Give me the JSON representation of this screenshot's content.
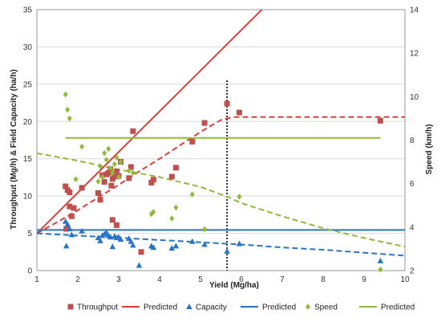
{
  "chart_data": {
    "type": "scatter",
    "xlabel": "Yield (Mg/ha)",
    "ylabel_left": "Throughput (Mg/h) & Field Capacity (ha/h)",
    "ylabel_right": "Speed (km/h)",
    "xlim": [
      1,
      10
    ],
    "ylim_left": [
      0,
      35
    ],
    "ylim_right": [
      2,
      14
    ],
    "xticks": [
      "1",
      "2",
      "3",
      "4",
      "5",
      "6",
      "7",
      "8",
      "9",
      "10"
    ],
    "yticks_left": [
      "0",
      "5",
      "10",
      "15",
      "20",
      "25",
      "30",
      "35"
    ],
    "yticks_right": [
      "2",
      "4",
      "6",
      "8",
      "10",
      "12",
      "14"
    ],
    "grid": "horizontal",
    "legend_position": "bottom",
    "vertical_marker_x": 5.65,
    "colors": {
      "red": "#d9403a",
      "blue": "#2a74c6",
      "green": "#8fba3a",
      "grid": "#d9d9d9",
      "marker_line": "#000000"
    },
    "legend": [
      {
        "label": "Throughput",
        "kind": "marker",
        "shape": "square",
        "color": "#c0504d"
      },
      {
        "label": "Predicted",
        "kind": "line",
        "color": "#d9403a"
      },
      {
        "label": "Capacity",
        "kind": "marker",
        "shape": "triangle",
        "color": "#2a74c6"
      },
      {
        "label": "Predicted",
        "kind": "line",
        "color": "#2a74c6"
      },
      {
        "label": "Speed",
        "kind": "marker",
        "shape": "diamond",
        "color": "#8fba3a"
      },
      {
        "label": "Predicted",
        "kind": "line",
        "color": "#8fba3a"
      }
    ],
    "series": [
      {
        "name": "Throughput",
        "axis": "left",
        "shape": "square",
        "color": "#c0504d",
        "points": [
          [
            1.7,
            11.3
          ],
          [
            1.72,
            5.6
          ],
          [
            1.75,
            10.8
          ],
          [
            1.8,
            10.5
          ],
          [
            1.8,
            8.6
          ],
          [
            1.85,
            7.3
          ],
          [
            1.9,
            8.4
          ],
          [
            2.1,
            11.1
          ],
          [
            2.5,
            10.4
          ],
          [
            2.55,
            9.5
          ],
          [
            2.6,
            12.8
          ],
          [
            2.65,
            11.9
          ],
          [
            2.7,
            12.9
          ],
          [
            2.75,
            13.1
          ],
          [
            2.8,
            13.6
          ],
          [
            2.82,
            11.4
          ],
          [
            2.85,
            12.3
          ],
          [
            2.9,
            12.6
          ],
          [
            2.95,
            13.3
          ],
          [
            2.85,
            6.8
          ],
          [
            2.95,
            6.1
          ],
          [
            3.0,
            12.7
          ],
          [
            3.05,
            14.6
          ],
          [
            3.25,
            12.4
          ],
          [
            3.3,
            13.9
          ],
          [
            3.35,
            18.7
          ],
          [
            3.55,
            2.5
          ],
          [
            3.8,
            11.8
          ],
          [
            3.85,
            12.2
          ],
          [
            4.3,
            12.6
          ],
          [
            4.4,
            13.8
          ],
          [
            4.8,
            17.3
          ],
          [
            5.1,
            19.8
          ],
          [
            5.65,
            22.4
          ],
          [
            5.95,
            21.2
          ],
          [
            9.4,
            20.1
          ]
        ]
      },
      {
        "name": "Predicted",
        "axis": "left",
        "style": "solid",
        "color": "#d9403a",
        "points": [
          [
            1,
            5
          ],
          [
            6.5,
            35
          ]
        ]
      },
      {
        "name": "Predicted",
        "axis": "left",
        "style": "dashed",
        "color": "#d9403a",
        "points": [
          [
            1,
            5
          ],
          [
            1.5,
            6.5
          ],
          [
            2,
            8.1
          ],
          [
            2.5,
            9.8
          ],
          [
            3,
            11.5
          ],
          [
            3.5,
            13.3
          ],
          [
            4,
            15
          ],
          [
            4.5,
            16.8
          ],
          [
            5,
            18.6
          ],
          [
            5.5,
            20.2
          ],
          [
            5.8,
            20.6
          ],
          [
            6,
            20.6
          ],
          [
            7,
            20.6
          ],
          [
            8,
            20.6
          ],
          [
            9,
            20.6
          ],
          [
            10,
            20.6
          ]
        ]
      },
      {
        "name": "Capacity",
        "axis": "left",
        "shape": "triangle",
        "color": "#2a74c6",
        "points": [
          [
            1.7,
            6.6
          ],
          [
            1.72,
            3.3
          ],
          [
            1.75,
            6.2
          ],
          [
            1.8,
            5.6
          ],
          [
            1.85,
            4.8
          ],
          [
            2.1,
            5.3
          ],
          [
            2.5,
            4.4
          ],
          [
            2.55,
            4.0
          ],
          [
            2.6,
            4.7
          ],
          [
            2.65,
            4.9
          ],
          [
            2.7,
            5.1
          ],
          [
            2.75,
            4.7
          ],
          [
            2.8,
            4.5
          ],
          [
            2.85,
            3.2
          ],
          [
            2.9,
            4.6
          ],
          [
            2.95,
            4.4
          ],
          [
            3.0,
            4.5
          ],
          [
            3.05,
            4.2
          ],
          [
            3.25,
            4.3
          ],
          [
            3.3,
            3.9
          ],
          [
            3.35,
            3.4
          ],
          [
            3.5,
            0.7
          ],
          [
            3.8,
            3.3
          ],
          [
            3.85,
            3.1
          ],
          [
            4.3,
            3.0
          ],
          [
            4.4,
            3.3
          ],
          [
            4.8,
            3.9
          ],
          [
            5.1,
            3.5
          ],
          [
            5.65,
            2.6
          ],
          [
            5.95,
            3.6
          ],
          [
            9.4,
            1.3
          ]
        ]
      },
      {
        "name": "Predicted",
        "axis": "left",
        "style": "solid",
        "color": "#2a74c6",
        "points": [
          [
            1,
            5.45
          ],
          [
            10,
            5.45
          ]
        ]
      },
      {
        "name": "Predicted",
        "axis": "left",
        "style": "dashed",
        "color": "#2a74c6",
        "points": [
          [
            1,
            5.0
          ],
          [
            2,
            4.7
          ],
          [
            3,
            4.4
          ],
          [
            4,
            4.1
          ],
          [
            5,
            3.8
          ],
          [
            6,
            3.5
          ],
          [
            7,
            3.1
          ],
          [
            8,
            2.8
          ],
          [
            9,
            2.4
          ],
          [
            10,
            2.0
          ]
        ]
      },
      {
        "name": "Speed",
        "axis": "right",
        "shape": "diamond",
        "color": "#8fba3a",
        "points": [
          [
            1.7,
            10.1
          ],
          [
            1.75,
            9.4
          ],
          [
            1.8,
            9.0
          ],
          [
            1.95,
            6.2
          ],
          [
            2.1,
            7.7
          ],
          [
            2.5,
            6.1
          ],
          [
            2.55,
            6.8
          ],
          [
            2.6,
            6.3
          ],
          [
            2.65,
            7.4
          ],
          [
            2.7,
            7.1
          ],
          [
            2.75,
            7.6
          ],
          [
            2.8,
            6.7
          ],
          [
            2.85,
            6.5
          ],
          [
            2.9,
            6.9
          ],
          [
            2.95,
            7.2
          ],
          [
            3.0,
            6.3
          ],
          [
            3.05,
            7.0
          ],
          [
            3.25,
            6.6
          ],
          [
            3.35,
            6.5
          ],
          [
            3.8,
            4.6
          ],
          [
            3.85,
            4.7
          ],
          [
            4.3,
            4.4
          ],
          [
            4.4,
            4.9
          ],
          [
            4.8,
            5.5
          ],
          [
            5.1,
            3.9
          ],
          [
            5.95,
            5.4
          ],
          [
            9.4,
            2.05
          ]
        ]
      },
      {
        "name": "Predicted",
        "axis": "right",
        "style": "solid",
        "color": "#8fba3a",
        "points": [
          [
            1.7,
            8.1
          ],
          [
            9.4,
            8.1
          ]
        ]
      },
      {
        "name": "Predicted",
        "axis": "right",
        "style": "dashed",
        "color": "#8fba3a",
        "points": [
          [
            1,
            7.4
          ],
          [
            2,
            7.05
          ],
          [
            3,
            6.65
          ],
          [
            4,
            6.3
          ],
          [
            5,
            5.85
          ],
          [
            5.65,
            5.4
          ],
          [
            6,
            5.1
          ],
          [
            7,
            4.5
          ],
          [
            8,
            3.95
          ],
          [
            9,
            3.5
          ],
          [
            10,
            3.1
          ]
        ]
      }
    ]
  }
}
